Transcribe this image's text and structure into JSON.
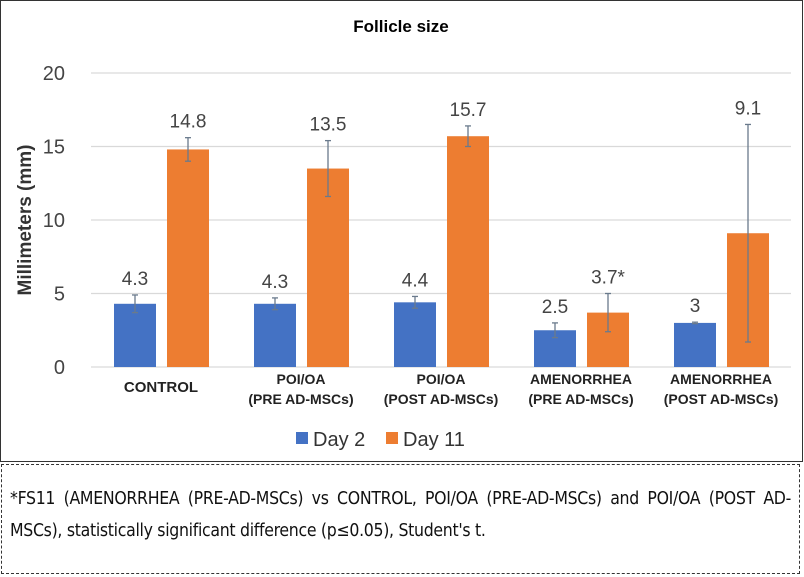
{
  "chart_data": {
    "type": "bar",
    "title": "Follicle size",
    "ylabel": "Millimeters (mm)",
    "xlabel": "",
    "ylim": [
      0,
      20
    ],
    "yticks": [
      0,
      5,
      10,
      15,
      20
    ],
    "grid": true,
    "legend_position": "bottom",
    "categories": [
      [
        "CONTROL"
      ],
      [
        "POI/OA",
        "(PRE AD-MSCs)"
      ],
      [
        "POI/OA",
        "(POST AD-MSCs)"
      ],
      [
        "AMENORRHEA",
        "(PRE AD-MSCs)"
      ],
      [
        "AMENORRHEA",
        "(POST AD-MSCs)"
      ]
    ],
    "series": [
      {
        "name": "Day 2",
        "color": "#4472C4",
        "values": [
          4.3,
          4.3,
          4.4,
          2.5,
          3
        ],
        "labels": [
          "4.3",
          "4.3",
          "4.4",
          "2.5",
          "3"
        ],
        "errors": [
          0.6,
          0.4,
          0.4,
          0.5,
          0.05
        ]
      },
      {
        "name": "Day 11",
        "color": "#ED7D31",
        "values": [
          14.8,
          13.5,
          15.7,
          3.7,
          9.1
        ],
        "labels": [
          "14.8",
          "13.5",
          "15.7",
          "3.7*",
          "9.1"
        ],
        "errors": [
          0.8,
          1.9,
          0.7,
          1.3,
          7.4
        ]
      }
    ]
  },
  "caption": "*FS11 (AMENORRHEA (PRE-AD-MSCs) vs CONTROL, POI/OA (PRE-AD-MSCs) and POI/OA (POST AD-MSCs), statistically significant difference (p≤0.05), Student's t."
}
